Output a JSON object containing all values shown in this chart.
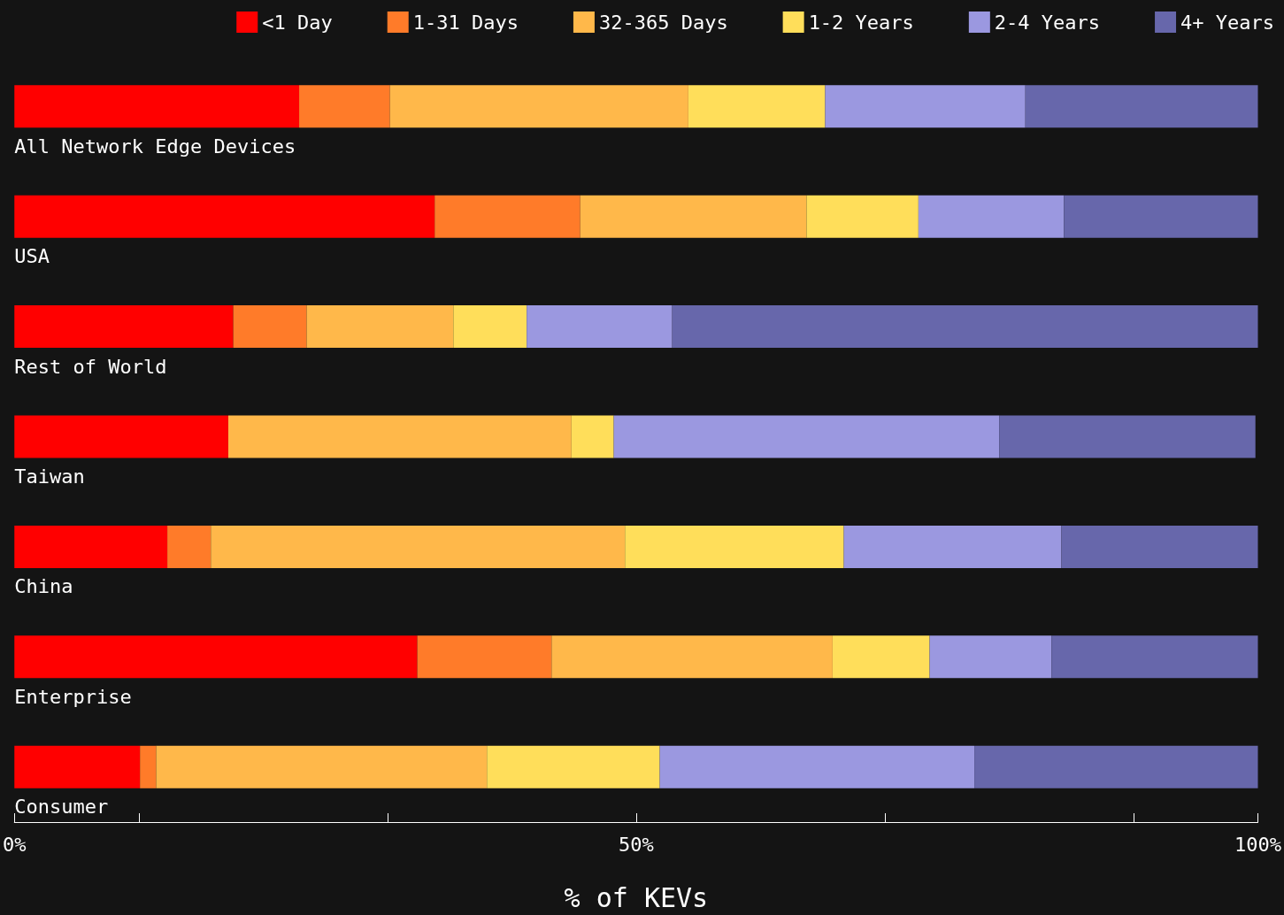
{
  "chart_data": {
    "type": "bar",
    "orientation": "horizontal",
    "stacked": true,
    "xlabel": "% of KEVs",
    "categories": [
      "All Network Edge Devices",
      "USA",
      "Rest of World",
      "Taiwan",
      "China",
      "Enterprise",
      "Consumer"
    ],
    "series": [
      {
        "name": "<1 Day",
        "color": "#ff0000",
        "values": [
          22.9,
          33.8,
          17.6,
          17.2,
          12.3,
          32.4,
          10.1
        ]
      },
      {
        "name": "1-31 Days",
        "color": "#ff7b29",
        "values": [
          7.3,
          11.7,
          5.9,
          0,
          3.5,
          10.8,
          1.3
        ]
      },
      {
        "name": "32-365 Days",
        "color": "#ffb84a",
        "values": [
          24.0,
          18.2,
          11.8,
          27.6,
          33.3,
          22.6,
          26.6
        ]
      },
      {
        "name": "1-2 Years",
        "color": "#ffde5a",
        "values": [
          11.0,
          9.0,
          5.9,
          3.4,
          17.6,
          7.8,
          13.9
        ]
      },
      {
        "name": "2-4 Years",
        "color": "#9b98e0",
        "values": [
          16.1,
          11.7,
          11.7,
          31.0,
          17.5,
          9.8,
          25.3
        ]
      },
      {
        "name": "4+ Years",
        "color": "#6767ab",
        "values": [
          18.7,
          15.6,
          47.1,
          20.6,
          15.8,
          16.6,
          22.8
        ]
      }
    ],
    "xlim": [
      0,
      100
    ],
    "xticks": [
      {
        "value": 0,
        "label": "0%"
      },
      {
        "value": 50,
        "label": "50%"
      },
      {
        "value": 100,
        "label": "100%"
      }
    ],
    "grid": false,
    "legend": "top right"
  }
}
